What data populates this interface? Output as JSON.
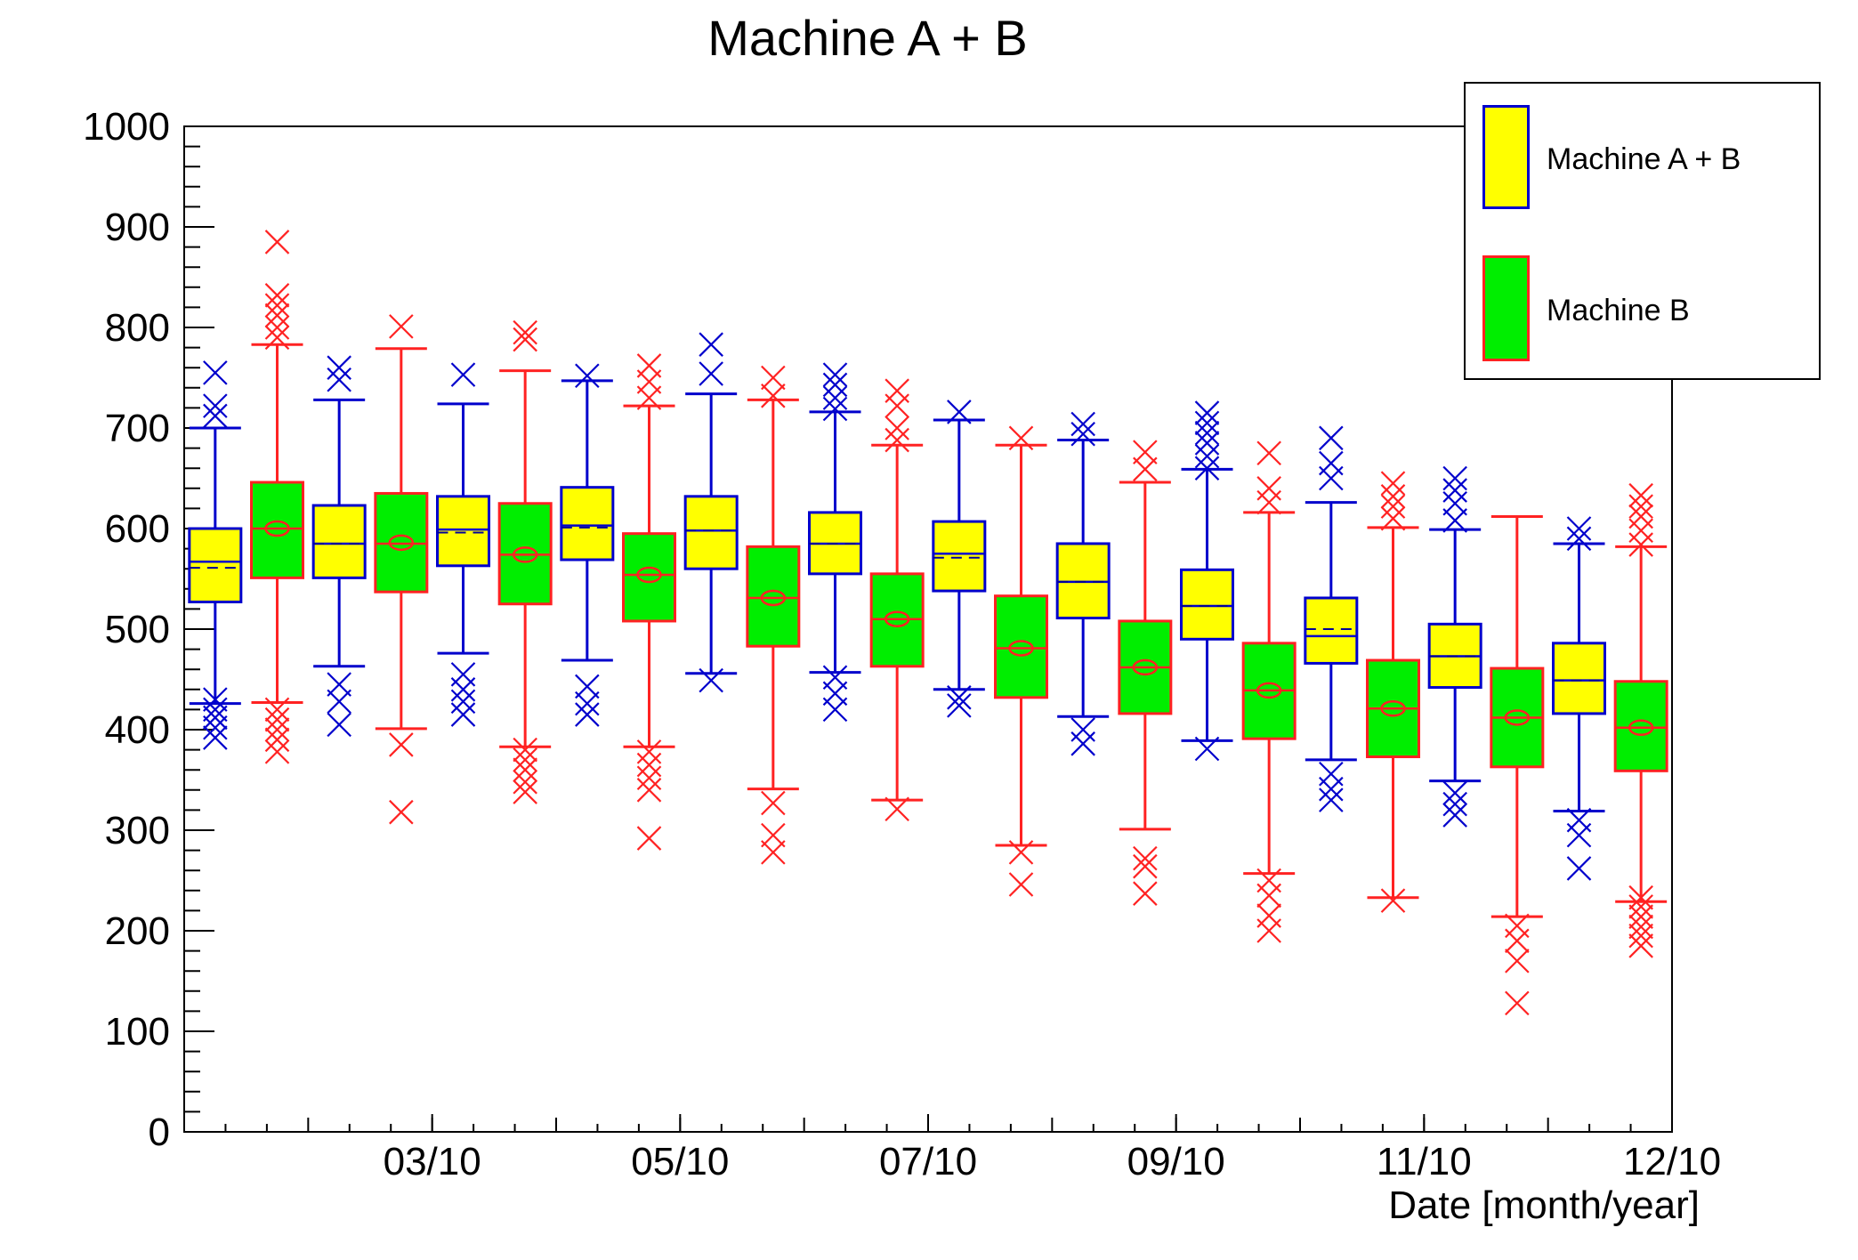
{
  "title": "Machine A + B",
  "chart_data": {
    "type": "boxplot",
    "title": "Machine A + B",
    "xlabel": "Date [month/year]",
    "ylabel": "",
    "ylim": [
      0,
      1000
    ],
    "yticks_major": [
      0,
      100,
      200,
      300,
      400,
      500,
      600,
      700,
      800,
      900,
      1000
    ],
    "ytick_minor_step": 20,
    "grid": "off",
    "legend_position": "top-right",
    "x_axis": {
      "months": [
        "01/10",
        "02/10",
        "03/10",
        "04/10",
        "05/10",
        "06/10",
        "07/10",
        "08/10",
        "09/10",
        "10/10",
        "11/10",
        "12/10"
      ],
      "minor_ticks_per_month": 3,
      "labeled_ticks": [
        {
          "label": "03/10",
          "boundary": 2
        },
        {
          "label": "05/10",
          "boundary": 4
        },
        {
          "label": "07/10",
          "boundary": 6
        },
        {
          "label": "09/10",
          "boundary": 8
        },
        {
          "label": "11/10",
          "boundary": 10
        },
        {
          "label": "12/10",
          "boundary": 12
        }
      ]
    },
    "series": [
      {
        "name": "Machine A + B",
        "fill": "#ffff00",
        "line": "#0000cc",
        "mean_color": "#000099",
        "mean_style": "dashed-line",
        "slot": 0.25,
        "entries": [
          {
            "month": "01/10",
            "q1": 527,
            "median": 567,
            "mean": 561,
            "q3": 600,
            "whisker_low": 426,
            "whisker_high": 700,
            "outliers_high": [
              755,
              722,
              712
            ],
            "outliers_low": [
              430,
              420,
              412,
              402,
              392
            ]
          },
          {
            "month": "02/10",
            "q1": 551,
            "median": 585,
            "mean": 585,
            "q3": 623,
            "whisker_low": 463,
            "whisker_high": 728,
            "outliers_high": [
              760,
              748
            ],
            "outliers_low": [
              445,
              428,
              405
            ]
          },
          {
            "month": "03/10",
            "q1": 563,
            "median": 599,
            "mean": 596,
            "q3": 632,
            "whisker_low": 476,
            "whisker_high": 724,
            "outliers_high": [
              753
            ],
            "outliers_low": [
              455,
              440,
              428,
              415
            ]
          },
          {
            "month": "04/10",
            "q1": 569,
            "median": 603,
            "mean": 601,
            "q3": 641,
            "whisker_low": 469,
            "whisker_high": 747,
            "outliers_high": [
              752
            ],
            "outliers_low": [
              443,
              426,
              415
            ]
          },
          {
            "month": "05/10",
            "q1": 560,
            "median": 598,
            "mean": 598,
            "q3": 632,
            "whisker_low": 456,
            "whisker_high": 734,
            "outliers_high": [
              783,
              754
            ],
            "outliers_low": [
              449
            ]
          },
          {
            "month": "06/10",
            "q1": 555,
            "median": 585,
            "mean": 585,
            "q3": 616,
            "whisker_low": 457,
            "whisker_high": 716,
            "outliers_high": [
              753,
              743,
              730,
              719
            ],
            "outliers_low": [
              452,
              436,
              420
            ]
          },
          {
            "month": "07/10",
            "q1": 538,
            "median": 575,
            "mean": 571,
            "q3": 607,
            "whisker_low": 440,
            "whisker_high": 708,
            "outliers_high": [
              716
            ],
            "outliers_low": [
              432,
              424
            ]
          },
          {
            "month": "08/10",
            "q1": 511,
            "median": 547,
            "mean": 547,
            "q3": 585,
            "whisker_low": 413,
            "whisker_high": 688,
            "outliers_high": [
              704,
              694
            ],
            "outliers_low": [
              400,
              386
            ]
          },
          {
            "month": "09/10",
            "q1": 490,
            "median": 523,
            "mean": 523,
            "q3": 559,
            "whisker_low": 389,
            "whisker_high": 659,
            "outliers_high": [
              715,
              705,
              695,
              685,
              672,
              660
            ],
            "outliers_low": [
              381
            ]
          },
          {
            "month": "10/10",
            "q1": 466,
            "median": 493,
            "mean": 500,
            "q3": 531,
            "whisker_low": 370,
            "whisker_high": 626,
            "outliers_high": [
              690,
              665,
              650
            ],
            "outliers_low": [
              356,
              341,
              330
            ]
          },
          {
            "month": "11/10",
            "q1": 442,
            "median": 473,
            "mean": 473,
            "q3": 505,
            "whisker_low": 349,
            "whisker_high": 599,
            "outliers_high": [
              650,
              638,
              625,
              608
            ],
            "outliers_low": [
              337,
              326,
              315
            ]
          },
          {
            "month": "12/10",
            "q1": 416,
            "median": 449,
            "mean": 449,
            "q3": 486,
            "whisker_low": 319,
            "whisker_high": 585,
            "outliers_high": [
              600,
              590
            ],
            "outliers_low": [
              310,
              295,
              262
            ]
          }
        ]
      },
      {
        "name": "Machine B",
        "fill": "#00ee00",
        "line": "#ff2222",
        "mean_color": "#ff2222",
        "mean_style": "circle",
        "slot": 0.75,
        "entries": [
          {
            "month": "01/10",
            "q1": 551,
            "median": 600,
            "mean": 600,
            "q3": 646,
            "whisker_low": 427,
            "whisker_high": 783,
            "outliers_high": [
              885,
              832,
              822,
              812,
              800,
              790
            ],
            "outliers_low": [
              420,
              410,
              400,
              390,
              378
            ]
          },
          {
            "month": "02/10",
            "q1": 537,
            "median": 585,
            "mean": 586,
            "q3": 635,
            "whisker_low": 401,
            "whisker_high": 779,
            "outliers_high": [
              801
            ],
            "outliers_low": [
              385,
              318
            ]
          },
          {
            "month": "03/10",
            "q1": 525,
            "median": 574,
            "mean": 574,
            "q3": 625,
            "whisker_low": 383,
            "whisker_high": 757,
            "outliers_high": [
              795,
              788
            ],
            "outliers_low": [
              380,
              370,
              360,
              348,
              338
            ]
          },
          {
            "month": "04/10",
            "q1": 508,
            "median": 554,
            "mean": 554,
            "q3": 595,
            "whisker_low": 383,
            "whisker_high": 722,
            "outliers_high": [
              762,
              746,
              730
            ],
            "outliers_low": [
              378,
              365,
              352,
              340,
              292
            ]
          },
          {
            "month": "05/10",
            "q1": 483,
            "median": 531,
            "mean": 531,
            "q3": 582,
            "whisker_low": 341,
            "whisker_high": 728,
            "outliers_high": [
              750,
              732
            ],
            "outliers_low": [
              327,
              295,
              278
            ]
          },
          {
            "month": "06/10",
            "q1": 463,
            "median": 510,
            "mean": 510,
            "q3": 555,
            "whisker_low": 330,
            "whisker_high": 683,
            "outliers_high": [
              737,
              722,
              700,
              688
            ],
            "outliers_low": [
              321
            ]
          },
          {
            "month": "07/10",
            "q1": 432,
            "median": 481,
            "mean": 481,
            "q3": 533,
            "whisker_low": 285,
            "whisker_high": 683,
            "outliers_high": [
              690
            ],
            "outliers_low": [
              278,
              246
            ]
          },
          {
            "month": "08/10",
            "q1": 416,
            "median": 462,
            "mean": 462,
            "q3": 508,
            "whisker_low": 301,
            "whisker_high": 646,
            "outliers_high": [
              676,
              659
            ],
            "outliers_low": [
              272,
              264,
              237
            ]
          },
          {
            "month": "09/10",
            "q1": 391,
            "median": 439,
            "mean": 439,
            "q3": 486,
            "whisker_low": 257,
            "whisker_high": 616,
            "outliers_high": [
              675,
              640,
              626
            ],
            "outliers_low": [
              250,
              235,
              215,
              200
            ]
          },
          {
            "month": "10/10",
            "q1": 373,
            "median": 421,
            "mean": 421,
            "q3": 469,
            "whisker_low": 233,
            "whisker_high": 601,
            "outliers_high": [
              645,
              632,
              622,
              610
            ],
            "outliers_low": [
              230
            ]
          },
          {
            "month": "11/10",
            "q1": 363,
            "median": 412,
            "mean": 412,
            "q3": 461,
            "whisker_low": 214,
            "whisker_high": 612,
            "outliers_high": [],
            "outliers_low": [
              205,
              190,
              170,
              128
            ]
          },
          {
            "month": "12/10",
            "q1": 359,
            "median": 402,
            "mean": 402,
            "q3": 448,
            "whisker_low": 229,
            "whisker_high": 582,
            "outliers_high": [
              633,
              622,
              612,
              598,
              584
            ],
            "outliers_low": [
              233,
              224,
              214,
              204,
              195,
              185
            ]
          }
        ]
      }
    ],
    "legend": {
      "entries": [
        {
          "label": "Machine A + B",
          "fill": "#ffff00",
          "line": "#0000cc"
        },
        {
          "label": "Machine B",
          "fill": "#00ee00",
          "line": "#ff2222"
        }
      ]
    }
  }
}
